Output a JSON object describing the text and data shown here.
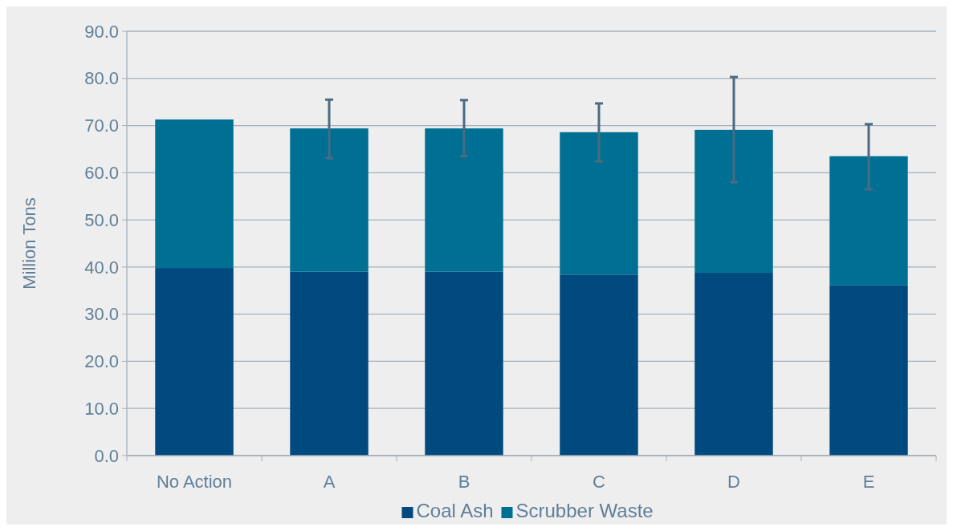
{
  "chart_data": {
    "type": "bar",
    "stacked": true,
    "ylabel": "Million Tons",
    "categories": [
      "No Action",
      "A",
      "B",
      "C",
      "D",
      "E"
    ],
    "series": [
      {
        "name": "Coal Ash",
        "color": "#004a7f",
        "values": [
          39.8,
          39.0,
          39.0,
          38.4,
          38.8,
          36.1
        ]
      },
      {
        "name": "Scrubber Waste",
        "color": "#006f94",
        "values": [
          31.5,
          30.4,
          30.4,
          30.2,
          30.3,
          27.4
        ],
        "errors": [
          null,
          [
            63.1,
            75.5
          ],
          [
            63.5,
            75.4
          ],
          [
            62.4,
            74.7
          ],
          [
            58.0,
            80.3
          ],
          [
            56.5,
            70.3
          ]
        ]
      }
    ],
    "ylim": [
      0,
      90
    ],
    "yticks": [
      {
        "value": 0,
        "label": "0.0"
      },
      {
        "value": 10,
        "label": "10.0"
      },
      {
        "value": 20,
        "label": "20.0"
      },
      {
        "value": 30,
        "label": "30.0"
      },
      {
        "value": 40,
        "label": "40.0"
      },
      {
        "value": 50,
        "label": "50.0"
      },
      {
        "value": 60,
        "label": "60.0"
      },
      {
        "value": 70,
        "label": "70.0"
      },
      {
        "value": 80,
        "label": "80.0"
      },
      {
        "value": 90,
        "label": "90.0"
      }
    ],
    "grid": "y",
    "legend": "bottom"
  }
}
